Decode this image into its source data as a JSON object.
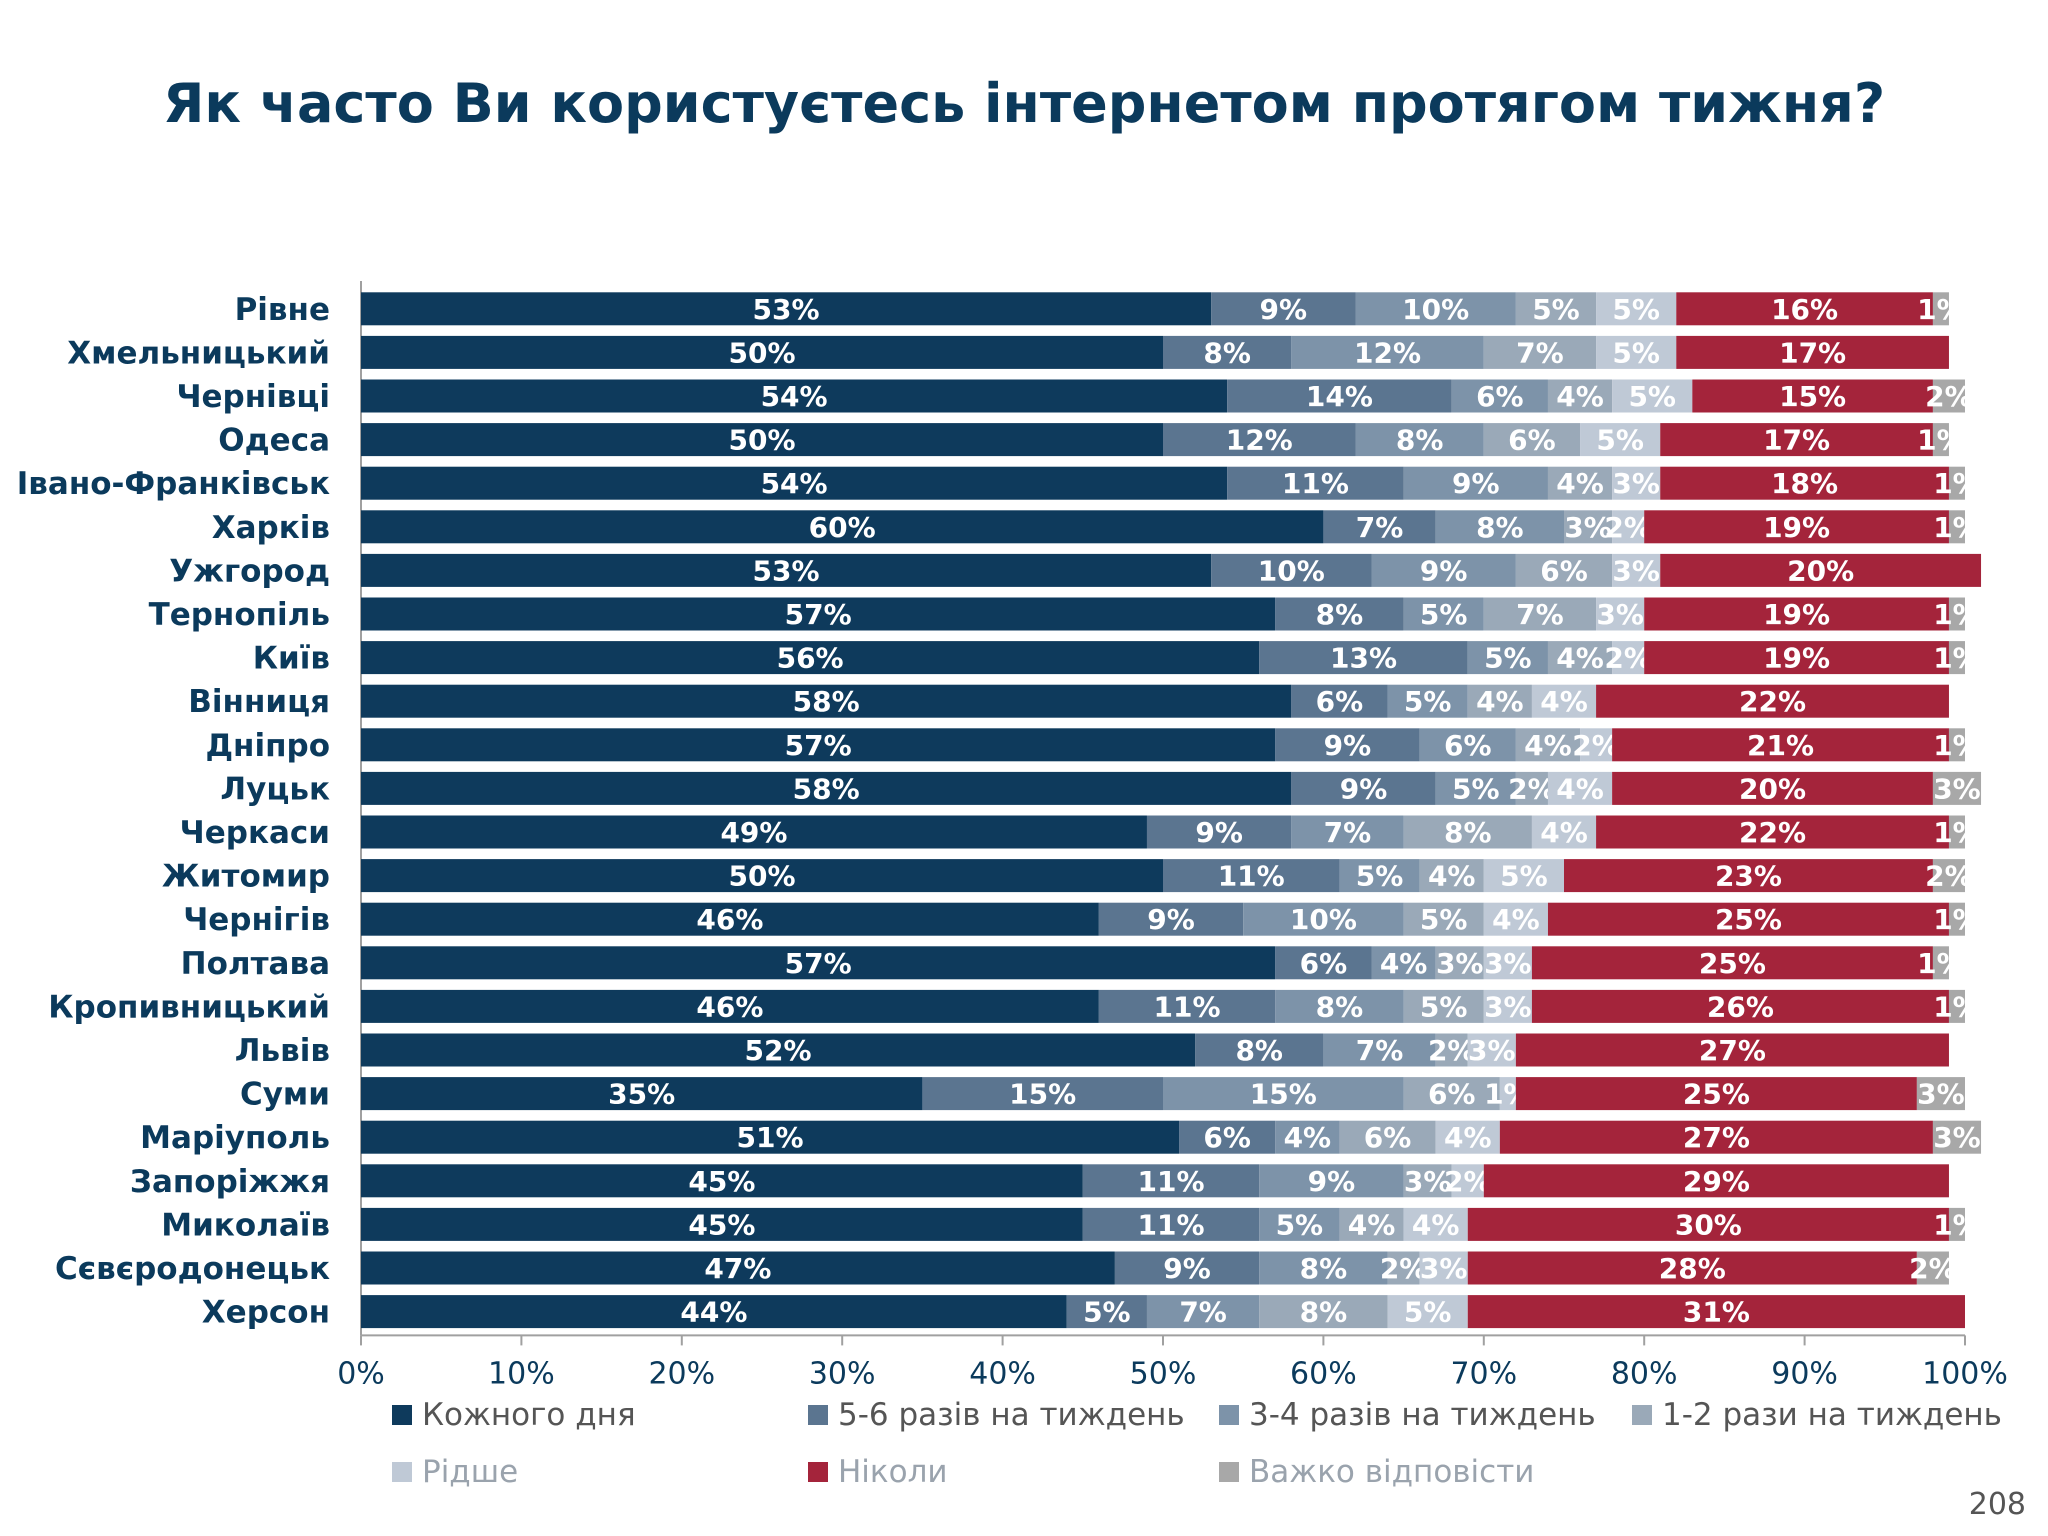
{
  "page": {
    "title": "Як часто Ви користуєтесь інтернетом протягом тижня?",
    "page_number": "208"
  },
  "chart_data": {
    "type": "bar",
    "orientation": "horizontal",
    "stacked": true,
    "xlim": [
      0,
      100
    ],
    "x_ticks": [
      "0%",
      "10%",
      "20%",
      "30%",
      "40%",
      "50%",
      "60%",
      "70%",
      "80%",
      "90%",
      "100%"
    ],
    "legend_position": "bottom",
    "categories": [
      "Рівне",
      "Хмельницький",
      "Чернівці",
      "Одеса",
      "Івано-Франківськ",
      "Харків",
      "Ужгород",
      "Тернопіль",
      "Київ",
      "Вінниця",
      "Дніпро",
      "Луцьк",
      "Черкаси",
      "Житомир",
      "Чернігів",
      "Полтава",
      "Кропивницький",
      "Львів",
      "Суми",
      "Маріуполь",
      "Запоріжжя",
      "Миколаїв",
      "Сєвєродонецьк",
      "Херсон"
    ],
    "series": [
      {
        "name": "Кожного дня",
        "color": "#0e3a5c",
        "values": [
          53,
          50,
          54,
          50,
          54,
          60,
          53,
          57,
          56,
          58,
          57,
          58,
          49,
          50,
          46,
          57,
          46,
          52,
          35,
          51,
          45,
          45,
          47,
          44
        ]
      },
      {
        "name": "5-6 разів на тиждень",
        "color": "#5b7590",
        "values": [
          9,
          8,
          14,
          12,
          11,
          7,
          10,
          8,
          13,
          6,
          9,
          9,
          9,
          11,
          9,
          6,
          11,
          8,
          15,
          6,
          11,
          11,
          9,
          5
        ]
      },
      {
        "name": "3-4 разів на тиждень",
        "color": "#7d93a9",
        "values": [
          10,
          12,
          6,
          8,
          9,
          8,
          9,
          5,
          5,
          5,
          6,
          5,
          7,
          5,
          10,
          4,
          8,
          7,
          15,
          4,
          9,
          5,
          8,
          7
        ]
      },
      {
        "name": "1-2 рази на тиждень",
        "color": "#9aa9b8",
        "values": [
          5,
          7,
          4,
          6,
          4,
          3,
          6,
          7,
          4,
          4,
          4,
          2,
          8,
          4,
          5,
          3,
          5,
          2,
          6,
          6,
          3,
          4,
          2,
          8
        ]
      },
      {
        "name": "Рідше",
        "color": "#bfc9d6",
        "values": [
          5,
          5,
          5,
          5,
          3,
          2,
          3,
          3,
          2,
          4,
          2,
          4,
          4,
          5,
          4,
          3,
          3,
          3,
          1,
          4,
          2,
          4,
          3,
          5
        ]
      },
      {
        "name": "Ніколи",
        "color": "#a4243b",
        "values": [
          16,
          17,
          15,
          17,
          18,
          19,
          20,
          19,
          19,
          22,
          21,
          20,
          22,
          23,
          25,
          25,
          26,
          27,
          25,
          27,
          29,
          30,
          28,
          31
        ]
      },
      {
        "name": "Важко відповісти",
        "color": "#a8a8a8",
        "values": [
          1,
          0,
          2,
          1,
          1,
          1,
          0,
          1,
          1,
          0,
          1,
          3,
          1,
          2,
          1,
          1,
          1,
          0,
          3,
          3,
          0,
          1,
          2,
          0
        ]
      }
    ]
  }
}
